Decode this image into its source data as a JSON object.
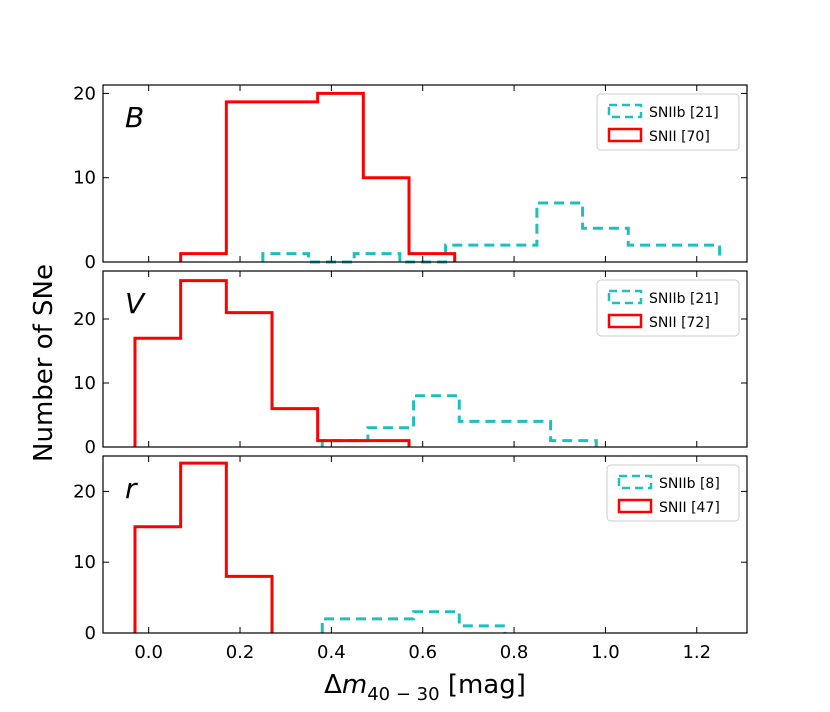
{
  "chart_data": {
    "type": "histogram",
    "ylabel": "Number of SNe",
    "xlabel_prefix": "Δ",
    "xlabel_var": "m",
    "xlabel_sub": "40 − 30",
    "xlabel_unit": " [mag]",
    "xlim": [
      -0.1,
      1.31
    ],
    "xticks": [
      0.0,
      0.2,
      0.4,
      0.6,
      0.8,
      1.0,
      1.2
    ],
    "xtick_labels": [
      "0.0",
      "0.2",
      "0.4",
      "0.6",
      "0.8",
      "1.0",
      "1.2"
    ],
    "colors": {
      "SNIIb": "#1fbfbf",
      "SNII": "#ff0000"
    },
    "panels": [
      {
        "band": "B",
        "ylim": [
          0,
          21
        ],
        "yticks": [
          0,
          10,
          20
        ],
        "ytick_labels": [
          "0",
          "10",
          "20"
        ],
        "series": [
          {
            "name": "SNIIb",
            "legend": "SNIIb [21]",
            "style": "dashed",
            "edges": [
              0.25,
              0.35,
              0.45,
              0.55,
              0.65,
              0.75,
              0.85,
              0.95,
              1.05,
              1.15,
              1.25
            ],
            "counts": [
              1,
              0,
              1,
              0,
              2,
              2,
              7,
              4,
              2,
              2
            ]
          },
          {
            "name": "SNII",
            "legend": "SNII [70]",
            "style": "solid",
            "edges": [
              0.07,
              0.17,
              0.27,
              0.37,
              0.47,
              0.57,
              0.67
            ],
            "counts": [
              1,
              19,
              19,
              20,
              10,
              1
            ]
          }
        ]
      },
      {
        "band": "V",
        "ylim": [
          0,
          27.5
        ],
        "yticks": [
          0,
          10,
          20
        ],
        "ytick_labels": [
          "0",
          "10",
          "20"
        ],
        "series": [
          {
            "name": "SNIIb",
            "legend": "SNIIb [21]",
            "style": "dashed",
            "edges": [
              0.38,
              0.48,
              0.58,
              0.68,
              0.78,
              0.88,
              0.98
            ],
            "counts": [
              1,
              3,
              8,
              4,
              4,
              1
            ]
          },
          {
            "name": "SNII",
            "legend": "SNII [72]",
            "style": "solid",
            "edges": [
              -0.03,
              0.07,
              0.17,
              0.27,
              0.37,
              0.47,
              0.57
            ],
            "counts": [
              17,
              26,
              21,
              6,
              1,
              1
            ]
          }
        ]
      },
      {
        "band": "r",
        "ylim": [
          0,
          25
        ],
        "yticks": [
          0,
          10,
          20
        ],
        "ytick_labels": [
          "0",
          "10",
          "20"
        ],
        "series": [
          {
            "name": "SNIIb",
            "legend": "SNIIb [8]",
            "style": "dashed",
            "edges": [
              0.38,
              0.48,
              0.58,
              0.68,
              0.78
            ],
            "counts": [
              2,
              2,
              3,
              1
            ]
          },
          {
            "name": "SNII",
            "legend": "SNII [47]",
            "style": "solid",
            "edges": [
              -0.03,
              0.07,
              0.17,
              0.27
            ],
            "counts": [
              15,
              24,
              8
            ]
          }
        ]
      }
    ]
  }
}
